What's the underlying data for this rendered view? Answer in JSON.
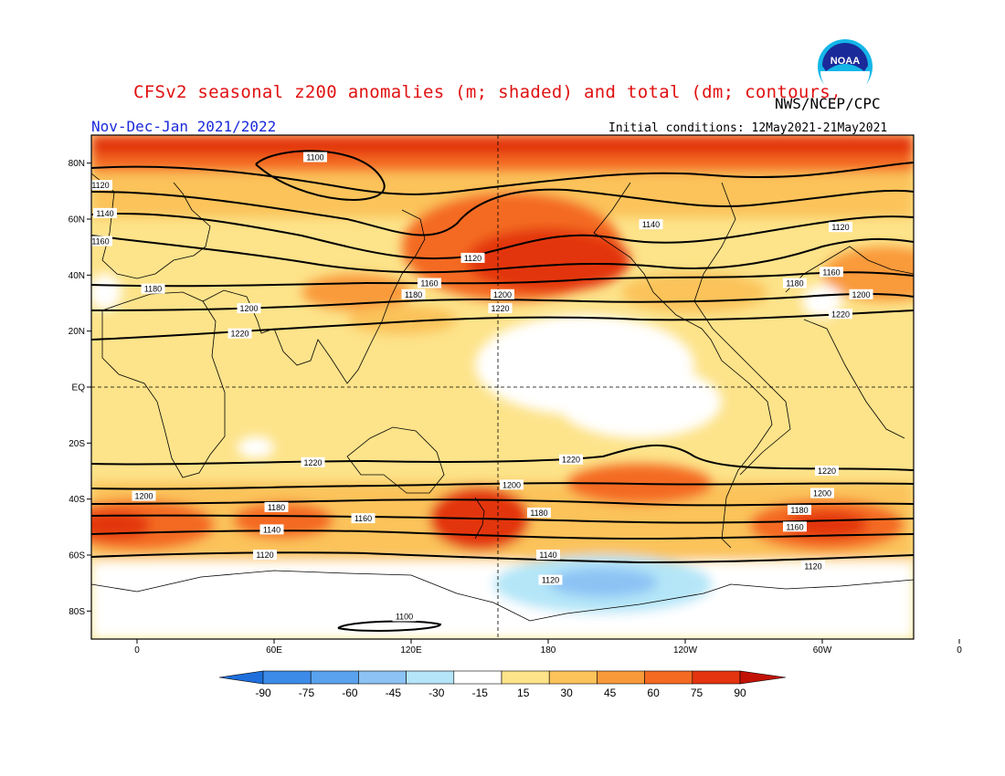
{
  "title": "CFSv2 seasonal z200 anomalies (m; shaded) and total (dm; contours)",
  "agency": "NWS/NCEP/CPC",
  "season": "Nov-Dec-Jan 2021/2022",
  "initial_conditions": "Initial conditions: 12May2021-21May2021",
  "logo_text": "NOAA",
  "map": {
    "lat_labels": [
      "80N",
      "60N",
      "40N",
      "20N",
      "EQ",
      "20S",
      "40S",
      "60S",
      "80S"
    ],
    "lon_labels": [
      "0",
      "60E",
      "120E",
      "180",
      "120W",
      "60W",
      "0"
    ],
    "contour_labels": [
      {
        "text": "1100",
        "lon": 117,
        "lat": -82
      },
      {
        "text": "1100",
        "lon": 78,
        "lat": 82
      },
      {
        "text": "1120",
        "lon": -16,
        "lat": 72
      },
      {
        "text": "1140",
        "lon": -14,
        "lat": 62
      },
      {
        "text": "1160",
        "lon": -16,
        "lat": 52
      },
      {
        "text": "1180",
        "lon": 7,
        "lat": 35
      },
      {
        "text": "1200",
        "lon": 49,
        "lat": 28
      },
      {
        "text": "1220",
        "lon": 45,
        "lat": 19
      },
      {
        "text": "1120",
        "lon": 147,
        "lat": 46
      },
      {
        "text": "1160",
        "lon": 128,
        "lat": 37
      },
      {
        "text": "1180",
        "lon": 121,
        "lat": 33
      },
      {
        "text": "1140",
        "lon": 225,
        "lat": 58
      },
      {
        "text": "1120",
        "lon": 308,
        "lat": 57
      },
      {
        "text": "1160",
        "lon": 304,
        "lat": 41
      },
      {
        "text": "1180",
        "lon": 288,
        "lat": 37
      },
      {
        "text": "1200",
        "lon": 160,
        "lat": 33
      },
      {
        "text": "1220",
        "lon": 159,
        "lat": 28
      },
      {
        "text": "1200",
        "lon": 317,
        "lat": 33
      },
      {
        "text": "1220",
        "lon": 308,
        "lat": 26
      },
      {
        "text": "1220",
        "lon": 77,
        "lat": -27
      },
      {
        "text": "1220",
        "lon": 190,
        "lat": -26
      },
      {
        "text": "1200",
        "lon": 164,
        "lat": -35
      },
      {
        "text": "1220",
        "lon": 302,
        "lat": -30
      },
      {
        "text": "1200",
        "lon": 3,
        "lat": -39
      },
      {
        "text": "1200",
        "lon": 300,
        "lat": -38
      },
      {
        "text": "1180",
        "lon": 61,
        "lat": -43
      },
      {
        "text": "1160",
        "lon": 99,
        "lat": -47
      },
      {
        "text": "1180",
        "lon": 176,
        "lat": -45
      },
      {
        "text": "1180",
        "lon": 290,
        "lat": -44
      },
      {
        "text": "1160",
        "lon": 288,
        "lat": -50
      },
      {
        "text": "1140",
        "lon": 59,
        "lat": -51
      },
      {
        "text": "1140",
        "lon": 180,
        "lat": -60
      },
      {
        "text": "1120",
        "lon": 56,
        "lat": -60
      },
      {
        "text": "1120",
        "lon": 181,
        "lat": -69
      },
      {
        "text": "1120",
        "lon": 296,
        "lat": -64
      }
    ]
  },
  "legend": {
    "colors": [
      "#1e6fdc",
      "#3d8be8",
      "#5aa2ee",
      "#8cc2f4",
      "#b4e6f8",
      "#ffffff",
      "#fde38a",
      "#fbc35a",
      "#f99a3a",
      "#f46a22",
      "#e3340f",
      "#c21206"
    ],
    "labels": [
      "-90",
      "-75",
      "-60",
      "-45",
      "-30",
      "-15",
      "15",
      "30",
      "45",
      "60",
      "75",
      "90"
    ]
  }
}
